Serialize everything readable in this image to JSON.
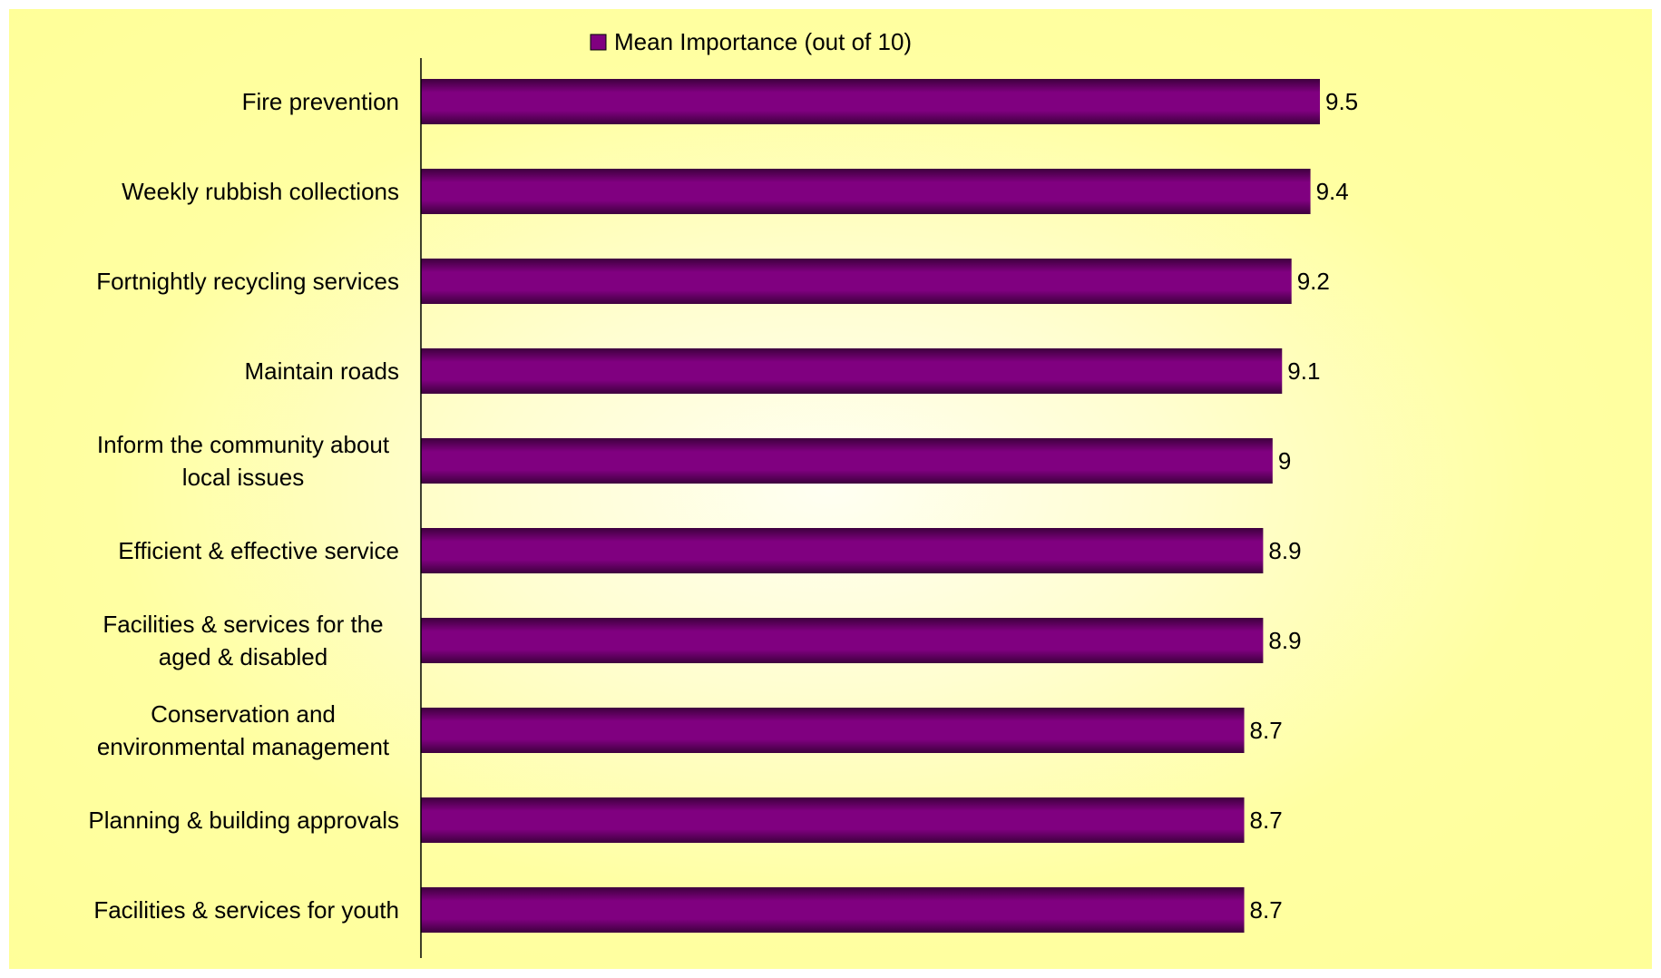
{
  "chart_data": {
    "type": "bar",
    "orientation": "horizontal",
    "categories": [
      [
        "Fire prevention"
      ],
      [
        "Weekly rubbish collections"
      ],
      [
        "Fortnightly recycling services"
      ],
      [
        "Maintain roads"
      ],
      [
        "Inform the community about",
        "local issues"
      ],
      [
        "Efficient & effective service"
      ],
      [
        "Facilities & services for the",
        "aged & disabled"
      ],
      [
        "Conservation and",
        "environmental management"
      ],
      [
        "Planning & building approvals"
      ],
      [
        "Facilities & services for youth"
      ]
    ],
    "series": [
      {
        "name": "Mean Importance (out of 10)",
        "values": [
          9.5,
          9.4,
          9.2,
          9.1,
          9,
          8.9,
          8.9,
          8.7,
          8.7,
          8.7
        ],
        "labels": [
          "9.5",
          "9.4",
          "9.2",
          "9.1",
          "9",
          "8.9",
          "8.9",
          "8.7",
          "8.7",
          "8.7"
        ]
      }
    ],
    "xlim": [
      0,
      10
    ],
    "grid": false,
    "legend_position": "top",
    "colors": {
      "bar": "#800080",
      "bar_dark": "#3d003d",
      "background": "#ffff99",
      "axis": "#000000"
    }
  }
}
